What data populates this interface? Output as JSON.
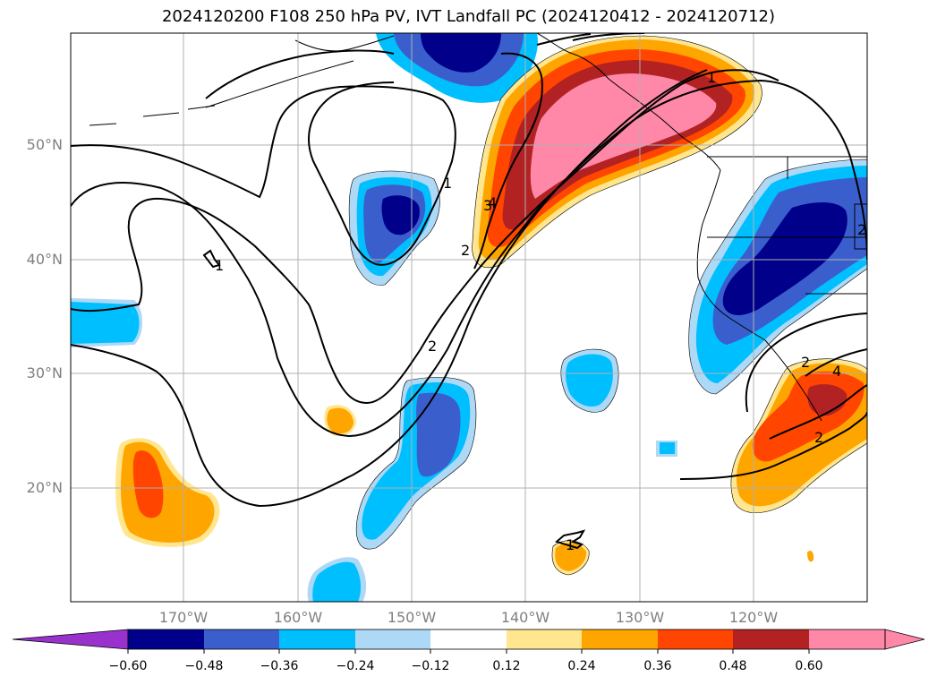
{
  "title": "2024120200 F108 250 hPa PV, IVT Landfall PC (2024120412 - 2024120712)",
  "lat_ticks": [
    "50°N",
    "40°N",
    "30°N",
    "20°N"
  ],
  "lon_ticks": [
    "170°W",
    "160°W",
    "150°W",
    "140°W",
    "130°W",
    "120°W"
  ],
  "colorbar": {
    "ticks": [
      "−0.60",
      "−0.48",
      "−0.36",
      "−0.24",
      "−0.12",
      "0.12",
      "0.24",
      "0.36",
      "0.48",
      "0.60"
    ],
    "colors": [
      "#9932cc",
      "#00008b",
      "#3a5fcd",
      "#00bfff",
      "#add8f6",
      "#ffffff",
      "#ffe68f",
      "#ffa500",
      "#ff4500",
      "#b22222",
      "#ff88a8"
    ]
  },
  "contour_labels": [
    "1",
    "1",
    "2",
    "2",
    "3",
    "4",
    "1",
    "1",
    "2",
    "2",
    "2",
    "1",
    "1",
    "4"
  ]
}
